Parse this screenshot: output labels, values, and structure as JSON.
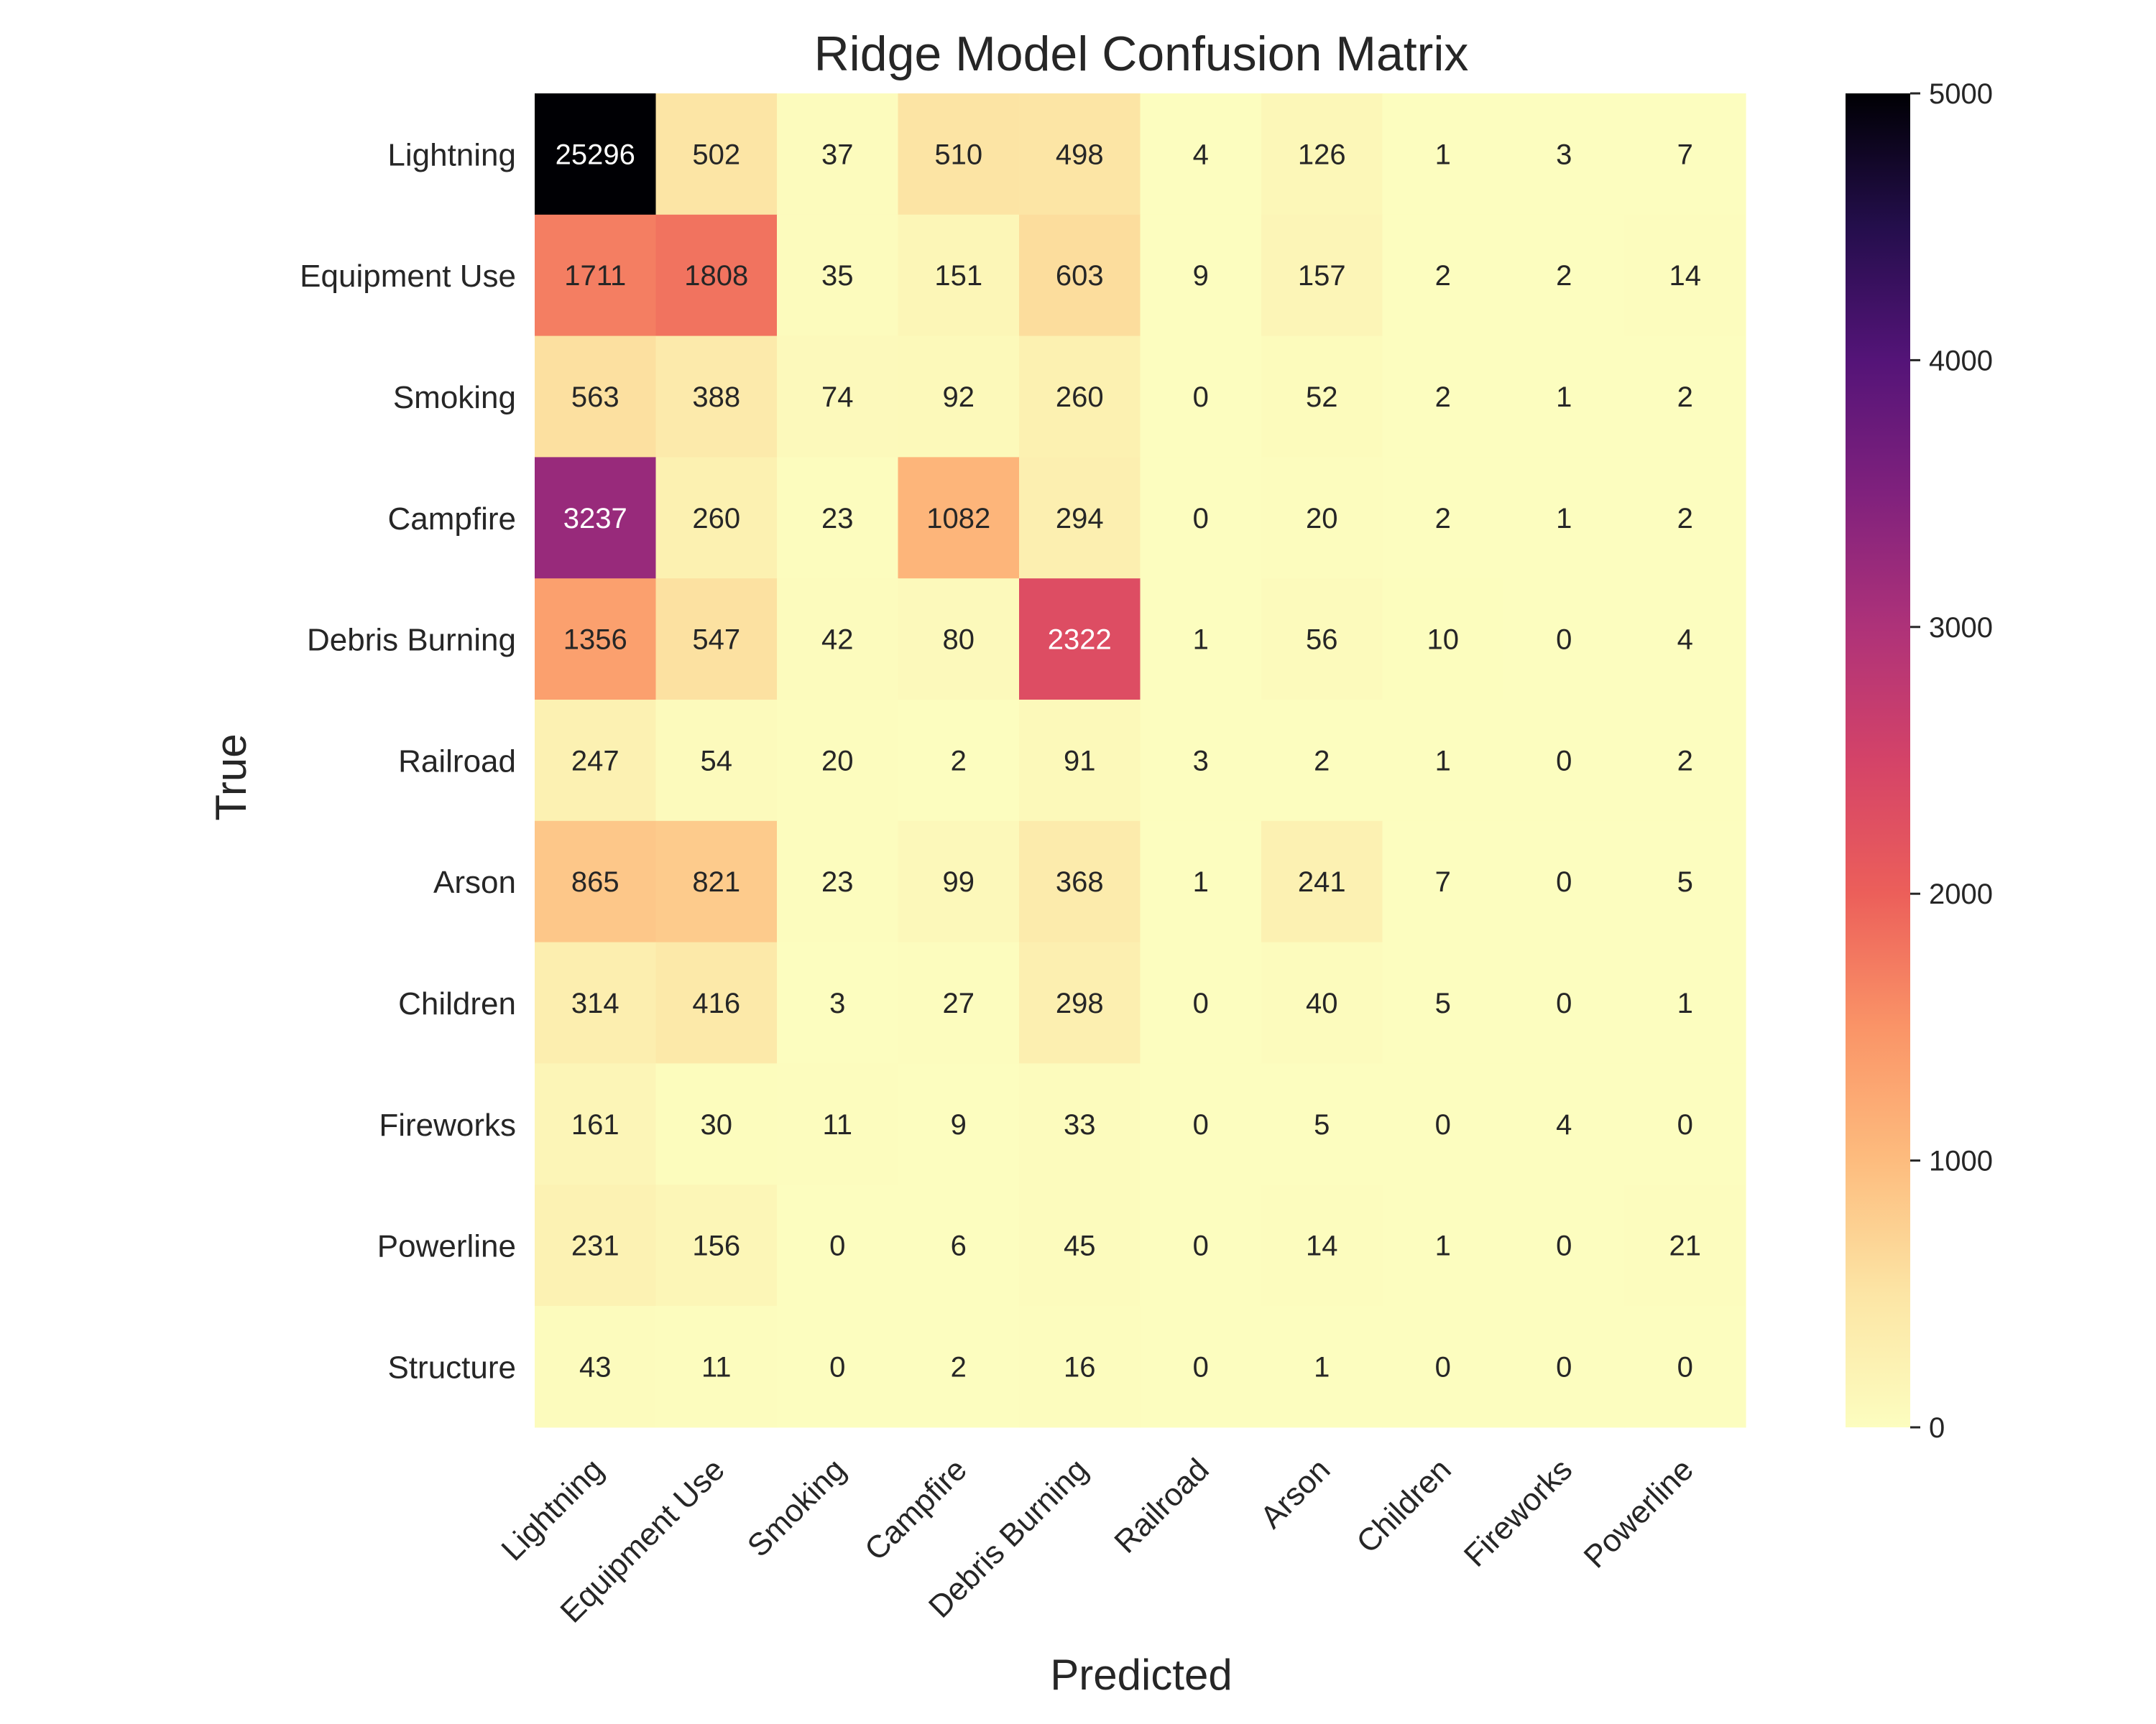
{
  "chart_data": {
    "type": "heatmap",
    "title": "Ridge Model Confusion Matrix",
    "xlabel": "Predicted",
    "ylabel": "True",
    "x_categories": [
      "Lightning",
      "Equipment Use",
      "Smoking",
      "Campfire",
      "Debris Burning",
      "Railroad",
      "Arson",
      "Children",
      "Fireworks",
      "Powerline"
    ],
    "y_categories": [
      "Lightning",
      "Equipment Use",
      "Smoking",
      "Campfire",
      "Debris Burning",
      "Railroad",
      "Arson",
      "Children",
      "Fireworks",
      "Powerline",
      "Structure"
    ],
    "values": [
      [
        25296,
        502,
        37,
        510,
        498,
        4,
        126,
        1,
        3,
        7
      ],
      [
        1711,
        1808,
        35,
        151,
        603,
        9,
        157,
        2,
        2,
        14
      ],
      [
        563,
        388,
        74,
        92,
        260,
        0,
        52,
        2,
        1,
        2
      ],
      [
        3237,
        260,
        23,
        1082,
        294,
        0,
        20,
        2,
        1,
        2
      ],
      [
        1356,
        547,
        42,
        80,
        2322,
        1,
        56,
        10,
        0,
        4
      ],
      [
        247,
        54,
        20,
        2,
        91,
        3,
        2,
        1,
        0,
        2
      ],
      [
        865,
        821,
        23,
        99,
        368,
        1,
        241,
        7,
        0,
        5
      ],
      [
        314,
        416,
        3,
        27,
        298,
        0,
        40,
        5,
        0,
        1
      ],
      [
        161,
        30,
        11,
        9,
        33,
        0,
        5,
        0,
        4,
        0
      ],
      [
        231,
        156,
        0,
        6,
        45,
        0,
        14,
        1,
        0,
        21
      ],
      [
        43,
        11,
        0,
        2,
        16,
        0,
        1,
        0,
        0,
        0
      ]
    ],
    "colorbar": {
      "colormap": "magma_r",
      "range": [
        0,
        5000
      ],
      "ticks": [
        0,
        1000,
        2000,
        3000,
        4000,
        5000
      ]
    },
    "grid": false
  }
}
